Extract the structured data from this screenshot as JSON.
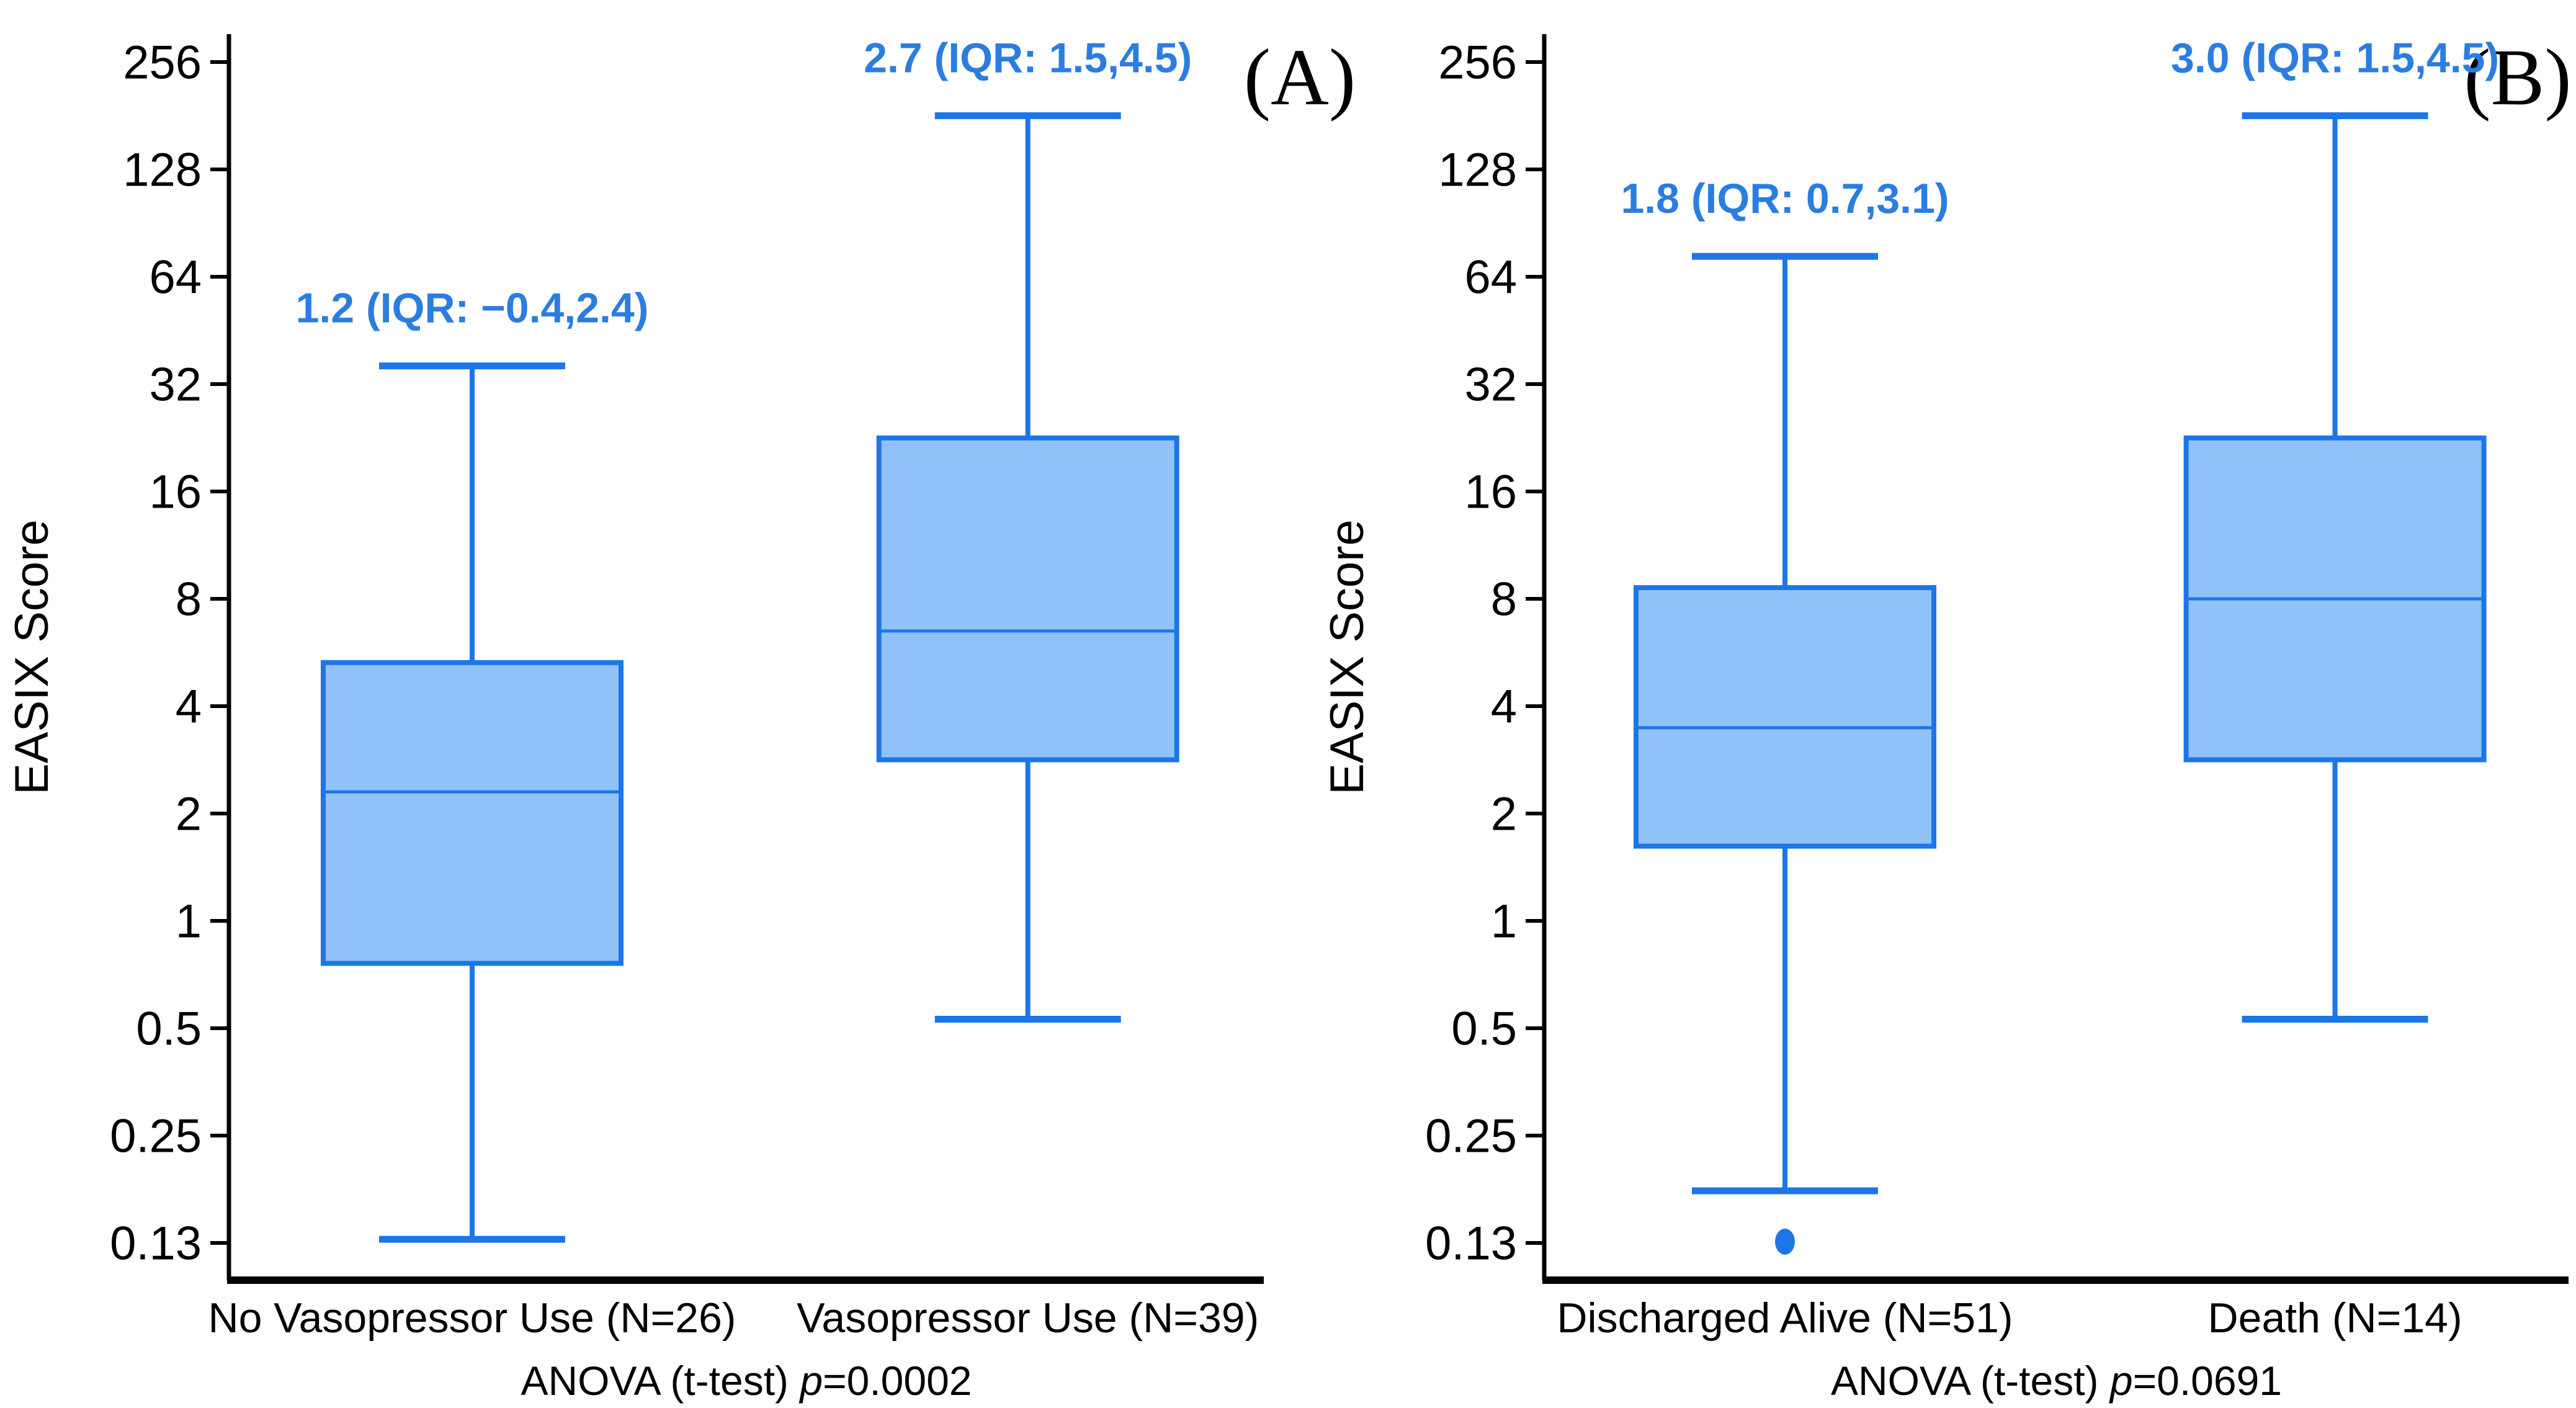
{
  "figure": {
    "background": "#ffffff",
    "box_fill": "#90C2F8",
    "box_stroke": "#1C76E8",
    "annotation_color": "#2B7DE0",
    "axis_color": "#000000",
    "text_color": "#000000"
  },
  "chart_data": {
    "type": "box",
    "scale": "log2",
    "grid": "off",
    "legend": "none",
    "ylabel": "EASIX Score",
    "ylim": [
      0.098,
      306
    ],
    "y_ticks": [
      {
        "label": "256",
        "value": 256
      },
      {
        "label": "128",
        "value": 128
      },
      {
        "label": "64",
        "value": 64
      },
      {
        "label": "32",
        "value": 32
      },
      {
        "label": "16",
        "value": 16
      },
      {
        "label": "8",
        "value": 8
      },
      {
        "label": "4",
        "value": 4
      },
      {
        "label": "2",
        "value": 2
      },
      {
        "label": "1",
        "value": 1
      },
      {
        "label": "0.5",
        "value": 0.5
      },
      {
        "label": "0.25",
        "value": 0.25
      },
      {
        "label": "0.13",
        "value": 0.125
      }
    ],
    "panels": [
      {
        "letter": "(A)",
        "ylabel": "EASIX Score",
        "footer": {
          "test": "ANOVA (t-test) ",
          "p_symbol": "p",
          "p_value": "=0.0002"
        },
        "groups": [
          {
            "label": "No Vasopressor Use (N=26)",
            "annotation": "1.2 (IQR: −0.4,2.4)",
            "stats": {
              "median": 2.3,
              "q1": 0.76,
              "q3": 5.3,
              "whisker_low": 0.128,
              "whisker_high": 36
            },
            "outliers": []
          },
          {
            "label": "Vasopressor Use (N=39)",
            "annotation": "2.7 (IQR: 1.5,4.5)",
            "stats": {
              "median": 6.5,
              "q1": 2.83,
              "q3": 22.6,
              "whisker_low": 0.53,
              "whisker_high": 181
            },
            "outliers": []
          }
        ]
      },
      {
        "letter": "(B)",
        "ylabel": "EASIX Score",
        "footer": {
          "test": "ANOVA (t-test) ",
          "p_symbol": "p",
          "p_value": "=0.0691"
        },
        "groups": [
          {
            "label": "Discharged Alive (N=51)",
            "annotation": "1.8 (IQR: 0.7,3.1)",
            "stats": {
              "median": 3.48,
              "q1": 1.62,
              "q3": 8.6,
              "whisker_low": 0.175,
              "whisker_high": 73
            },
            "outliers": [
              0.126
            ]
          },
          {
            "label": "Death (N=14)",
            "annotation": "3.0 (IQR: 1.5,4.5)",
            "stats": {
              "median": 8.0,
              "q1": 2.83,
              "q3": 22.6,
              "whisker_low": 0.53,
              "whisker_high": 181
            },
            "outliers": []
          }
        ]
      }
    ]
  }
}
